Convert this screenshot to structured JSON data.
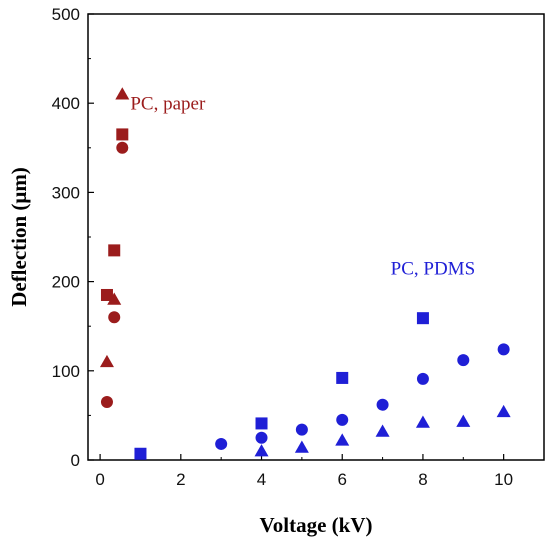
{
  "chart_data": {
    "type": "scatter",
    "xlabel": "Voltage (kV)",
    "ylabel": "Deflection (μm)",
    "xlim": [
      -0.3,
      11
    ],
    "ylim": [
      0,
      500
    ],
    "xticks": [
      "0",
      "2",
      "4",
      "6",
      "8",
      "10"
    ],
    "yticks": [
      "0",
      "100",
      "200",
      "300",
      "400",
      "500"
    ],
    "grid": false,
    "colors": {
      "pc_paper": "#9b1c1c",
      "pc_pdms": "#1f1fd6"
    },
    "annotations": [
      {
        "text": "PC, paper",
        "group": "pc_paper",
        "x": 0.75,
        "y": 393
      },
      {
        "text": "PC, PDMS",
        "group": "pc_pdms",
        "x": 7.2,
        "y": 208
      }
    ],
    "series": [
      {
        "group": "pc_paper",
        "marker": "triangle",
        "x": [
          0.17,
          0.35,
          0.55
        ],
        "y": [
          110,
          180,
          410
        ]
      },
      {
        "group": "pc_paper",
        "marker": "square",
        "x": [
          0.17,
          0.35,
          0.55
        ],
        "y": [
          185,
          235,
          365
        ]
      },
      {
        "group": "pc_paper",
        "marker": "circle",
        "x": [
          0.17,
          0.35,
          0.55
        ],
        "y": [
          65,
          160,
          350
        ]
      },
      {
        "group": "pc_pdms",
        "marker": "square",
        "x": [
          1,
          4,
          6,
          8
        ],
        "y": [
          7,
          41,
          92,
          159
        ]
      },
      {
        "group": "pc_pdms",
        "marker": "circle",
        "x": [
          3,
          4,
          5,
          6,
          7,
          8,
          9,
          10
        ],
        "y": [
          18,
          25,
          34,
          45,
          62,
          91,
          112,
          124
        ]
      },
      {
        "group": "pc_pdms",
        "marker": "triangle",
        "x": [
          4,
          5,
          6,
          7,
          8,
          9,
          10
        ],
        "y": [
          10,
          14,
          22,
          32,
          42,
          43,
          54
        ]
      }
    ]
  }
}
